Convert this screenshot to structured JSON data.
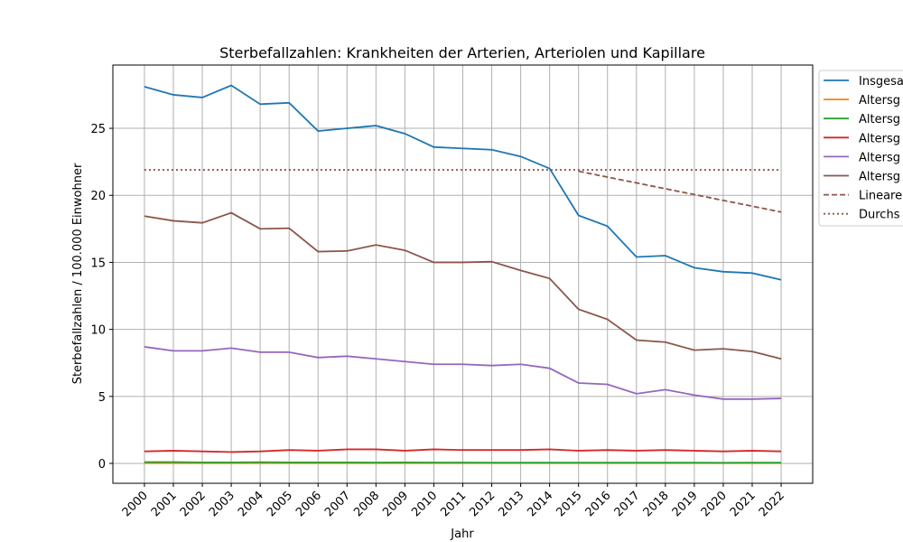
{
  "chart_data": {
    "type": "line",
    "title": "Sterbefallzahlen: Krankheiten der Arterien, Arteriolen und Kapillare",
    "xlabel": "Jahr",
    "ylabel": "Sterbefallzahlen / 100.000 Einwohner",
    "x": [
      2000,
      2001,
      2002,
      2003,
      2004,
      2005,
      2006,
      2007,
      2008,
      2009,
      2010,
      2011,
      2012,
      2013,
      2014,
      2015,
      2016,
      2017,
      2018,
      2019,
      2020,
      2021,
      2022
    ],
    "xticks": [
      2000,
      2001,
      2002,
      2003,
      2004,
      2005,
      2006,
      2007,
      2008,
      2009,
      2010,
      2011,
      2012,
      2013,
      2014,
      2015,
      2016,
      2017,
      2018,
      2019,
      2020,
      2021,
      2022
    ],
    "xlim": [
      1998.91,
      2023.09
    ],
    "ylim": [
      -1.48,
      29.72
    ],
    "yticks": [
      0,
      5,
      10,
      15,
      20,
      25
    ],
    "grid": true,
    "legend": "outside right",
    "series": [
      {
        "name": "Insgesa",
        "color": "#1f77b4",
        "linestyle": "solid",
        "values": [
          28.1,
          27.5,
          27.3,
          28.2,
          26.8,
          26.9,
          24.8,
          25.0,
          25.2,
          24.6,
          23.6,
          23.5,
          23.4,
          22.9,
          22.0,
          18.5,
          17.7,
          15.4,
          15.5,
          14.6,
          14.3,
          14.2,
          13.7
        ]
      },
      {
        "name": "Altersg",
        "color": "#ff7f0e",
        "linestyle": "solid",
        "values": [
          0.02,
          0.02,
          0.02,
          0.02,
          0.02,
          0.02,
          0.02,
          0.02,
          0.02,
          0.02,
          0.02,
          0.02,
          0.02,
          0.02,
          0.02,
          0.02,
          0.02,
          0.02,
          0.02,
          0.02,
          0.02,
          0.02,
          0.02
        ]
      },
      {
        "name": "Altersg",
        "color": "#2ca02c",
        "linestyle": "solid",
        "values": [
          0.1,
          0.1,
          0.08,
          0.08,
          0.09,
          0.08,
          0.08,
          0.08,
          0.07,
          0.08,
          0.07,
          0.07,
          0.06,
          0.06,
          0.06,
          0.06,
          0.06,
          0.06,
          0.06,
          0.06,
          0.05,
          0.06,
          0.06
        ]
      },
      {
        "name": "Altersg",
        "color": "#d62728",
        "linestyle": "solid",
        "values": [
          0.9,
          0.95,
          0.9,
          0.85,
          0.9,
          1.0,
          0.95,
          1.05,
          1.05,
          0.95,
          1.05,
          1.0,
          1.0,
          1.0,
          1.05,
          0.95,
          1.0,
          0.95,
          1.0,
          0.95,
          0.9,
          0.95,
          0.9
        ]
      },
      {
        "name": "Altersg",
        "color": "#9467bd",
        "linestyle": "solid",
        "values": [
          8.7,
          8.4,
          8.4,
          8.6,
          8.3,
          8.3,
          7.9,
          8.0,
          7.8,
          7.6,
          7.4,
          7.4,
          7.3,
          7.4,
          7.1,
          6.0,
          5.9,
          5.2,
          5.5,
          5.1,
          4.8,
          4.8,
          4.85
        ]
      },
      {
        "name": "Altersg",
        "color": "#8c564b",
        "linestyle": "solid",
        "values": [
          18.45,
          18.1,
          17.95,
          18.7,
          17.5,
          17.55,
          15.8,
          15.85,
          16.3,
          15.9,
          15.0,
          15.0,
          15.05,
          14.4,
          13.8,
          11.5,
          10.75,
          9.2,
          9.05,
          8.45,
          8.55,
          8.35,
          7.8
        ]
      },
      {
        "name": "Lineare",
        "color": "#8c564b",
        "linestyle": "dashed",
        "values": [
          null,
          null,
          null,
          null,
          null,
          null,
          null,
          null,
          null,
          null,
          null,
          null,
          null,
          null,
          null,
          21.8,
          21.36,
          20.93,
          20.49,
          20.06,
          19.62,
          19.19,
          18.75
        ]
      },
      {
        "name": "Durchs",
        "color": "#8c564b",
        "linestyle": "dotted",
        "values": [
          21.9,
          21.9,
          21.9,
          21.9,
          21.9,
          21.9,
          21.9,
          21.9,
          21.9,
          21.9,
          21.9,
          21.9,
          21.9,
          21.9,
          21.9,
          21.9,
          21.9,
          21.9,
          21.9,
          21.9,
          21.9,
          21.9,
          21.9
        ]
      }
    ]
  }
}
